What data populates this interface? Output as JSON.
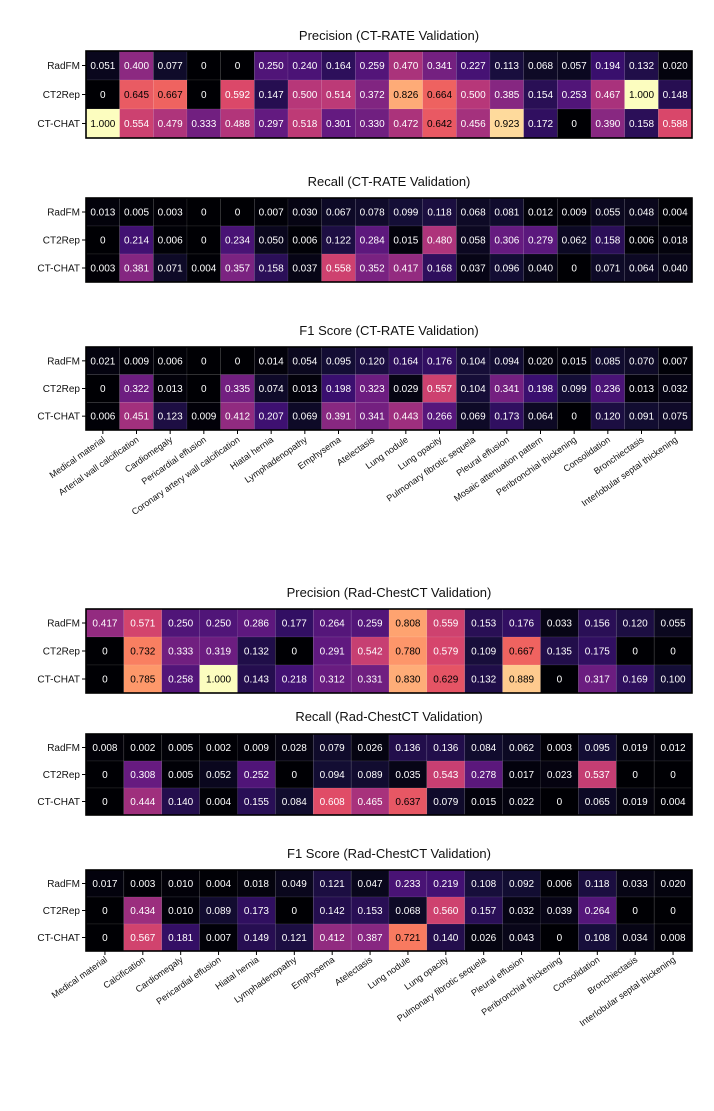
{
  "chart_data": {
    "type": "heatmap",
    "row_labels": [
      "RadFM",
      "CT2Rep",
      "CT-CHAT"
    ],
    "colormap": "magma",
    "value_range": [
      0,
      1
    ],
    "datasets": [
      {
        "name": "CT-RATE Validation",
        "columns": [
          "Medical material",
          "Arterial wall calcification",
          "Cardiomegaly",
          "Pericardial effusion",
          "Coronary artery wall calcification",
          "Hiatal hernia",
          "Lymphadenopathy",
          "Emphysema",
          "Atelectasis",
          "Lung nodule",
          "Lung opacity",
          "Pulmonary fibrotic sequela",
          "Pleural effusion",
          "Mosaic attenuation pattern",
          "Peribronchial thickening",
          "Consolidation",
          "Bronchiectasis",
          "Interlobular septal thickening"
        ],
        "panels": [
          {
            "title": "Precision (CT-RATE Validation)",
            "values": [
              [
                "0.051",
                "0.400",
                "0.077",
                "0",
                "0",
                "0.250",
                "0.240",
                "0.164",
                "0.259",
                "0.470",
                "0.341",
                "0.227",
                "0.113",
                "0.068",
                "0.057",
                "0.194",
                "0.132",
                "0.020"
              ],
              [
                "0",
                "0.645",
                "0.667",
                "0",
                "0.592",
                "0.147",
                "0.500",
                "0.514",
                "0.372",
                "0.826",
                "0.664",
                "0.500",
                "0.385",
                "0.154",
                "0.253",
                "0.467",
                "1.000",
                "0.148"
              ],
              [
                "1.000",
                "0.554",
                "0.479",
                "0.333",
                "0.488",
                "0.297",
                "0.518",
                "0.301",
                "0.330",
                "0.472",
                "0.642",
                "0.456",
                "0.923",
                "0.172",
                "0",
                "0.390",
                "0.158",
                "0.588"
              ]
            ]
          },
          {
            "title": "Recall (CT-RATE Validation)",
            "values": [
              [
                "0.013",
                "0.005",
                "0.003",
                "0",
                "0",
                "0.007",
                "0.030",
                "0.067",
                "0.078",
                "0.099",
                "0.118",
                "0.068",
                "0.081",
                "0.012",
                "0.009",
                "0.055",
                "0.048",
                "0.004"
              ],
              [
                "0",
                "0.214",
                "0.006",
                "0",
                "0.234",
                "0.050",
                "0.006",
                "0.122",
                "0.284",
                "0.015",
                "0.480",
                "0.058",
                "0.306",
                "0.279",
                "0.062",
                "0.158",
                "0.006",
                "0.018"
              ],
              [
                "0.003",
                "0.381",
                "0.071",
                "0.004",
                "0.357",
                "0.158",
                "0.037",
                "0.558",
                "0.352",
                "0.417",
                "0.168",
                "0.037",
                "0.096",
                "0.040",
                "0",
                "0.071",
                "0.064",
                "0.040"
              ]
            ]
          },
          {
            "title": "F1 Score (CT-RATE Validation)",
            "values": [
              [
                "0.021",
                "0.009",
                "0.006",
                "0",
                "0",
                "0.014",
                "0.054",
                "0.095",
                "0.120",
                "0.164",
                "0.176",
                "0.104",
                "0.094",
                "0.020",
                "0.015",
                "0.085",
                "0.070",
                "0.007"
              ],
              [
                "0",
                "0.322",
                "0.013",
                "0",
                "0.335",
                "0.074",
                "0.013",
                "0.198",
                "0.323",
                "0.029",
                "0.557",
                "0.104",
                "0.341",
                "0.198",
                "0.099",
                "0.236",
                "0.013",
                "0.032"
              ],
              [
                "0.006",
                "0.451",
                "0.123",
                "0.009",
                "0.412",
                "0.207",
                "0.069",
                "0.391",
                "0.341",
                "0.443",
                "0.266",
                "0.069",
                "0.173",
                "0.064",
                "0",
                "0.120",
                "0.091",
                "0.075"
              ]
            ]
          }
        ]
      },
      {
        "name": "Rad-ChestCT Validation",
        "columns": [
          "Medical material",
          "Calcification",
          "Cardiomegaly",
          "Pericardial effusion",
          "Hiatal hernia",
          "Lymphadenopathy",
          "Emphysema",
          "Atelectasis",
          "Lung nodule",
          "Lung opacity",
          "Pulmonary fibrotic sequela",
          "Pleural effusion",
          "Peribronchial thickening",
          "Consolidation",
          "Bronchiectasis",
          "Interlobular septal thickening"
        ],
        "panels": [
          {
            "title": "Precision (Rad-ChestCT Validation)",
            "values": [
              [
                "0.417",
                "0.571",
                "0.250",
                "0.250",
                "0.286",
                "0.177",
                "0.264",
                "0.259",
                "0.808",
                "0.559",
                "0.153",
                "0.176",
                "0.033",
                "0.156",
                "0.120",
                "0.055"
              ],
              [
                "0",
                "0.732",
                "0.333",
                "0.319",
                "0.132",
                "0",
                "0.291",
                "0.542",
                "0.780",
                "0.579",
                "0.109",
                "0.667",
                "0.135",
                "0.175",
                "0",
                "0"
              ],
              [
                "0",
                "0.785",
                "0.258",
                "1.000",
                "0.143",
                "0.218",
                "0.312",
                "0.331",
                "0.830",
                "0.629",
                "0.132",
                "0.889",
                "0",
                "0.317",
                "0.169",
                "0.100"
              ]
            ]
          },
          {
            "title": "Recall (Rad-ChestCT Validation)",
            "values": [
              [
                "0.008",
                "0.002",
                "0.005",
                "0.002",
                "0.009",
                "0.028",
                "0.079",
                "0.026",
                "0.136",
                "0.136",
                "0.084",
                "0.062",
                "0.003",
                "0.095",
                "0.019",
                "0.012"
              ],
              [
                "0",
                "0.308",
                "0.005",
                "0.052",
                "0.252",
                "0",
                "0.094",
                "0.089",
                "0.035",
                "0.543",
                "0.278",
                "0.017",
                "0.023",
                "0.537",
                "0",
                "0"
              ],
              [
                "0",
                "0.444",
                "0.140",
                "0.004",
                "0.155",
                "0.084",
                "0.608",
                "0.465",
                "0.637",
                "0.079",
                "0.015",
                "0.022",
                "0",
                "0.065",
                "0.019",
                "0.004"
              ]
            ]
          },
          {
            "title": "F1 Score (Rad-ChestCT Validation)",
            "values": [
              [
                "0.017",
                "0.003",
                "0.010",
                "0.004",
                "0.018",
                "0.049",
                "0.121",
                "0.047",
                "0.233",
                "0.219",
                "0.108",
                "0.092",
                "0.006",
                "0.118",
                "0.033",
                "0.020"
              ],
              [
                "0",
                "0.434",
                "0.010",
                "0.089",
                "0.173",
                "0",
                "0.142",
                "0.153",
                "0.068",
                "0.560",
                "0.157",
                "0.032",
                "0.039",
                "0.264",
                "0",
                "0"
              ],
              [
                "0",
                "0.567",
                "0.181",
                "0.007",
                "0.149",
                "0.121",
                "0.412",
                "0.387",
                "0.721",
                "0.140",
                "0.026",
                "0.043",
                "0",
                "0.108",
                "0.034",
                "0.008"
              ]
            ]
          }
        ]
      }
    ]
  }
}
